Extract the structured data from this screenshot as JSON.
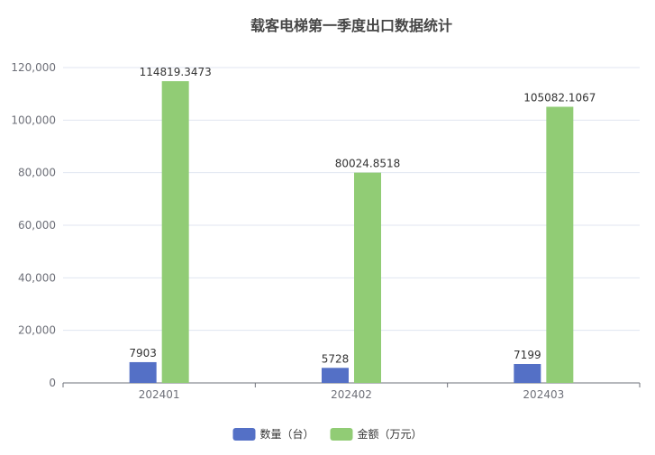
{
  "chart_data": {
    "type": "bar",
    "title": "载客电梯第一季度出口数据统计",
    "categories": [
      "202401",
      "202402",
      "202403"
    ],
    "series": [
      {
        "name": "数量（台）",
        "values": [
          7903,
          5728,
          7199
        ],
        "labels": [
          "7903",
          "5728",
          "7199"
        ],
        "color": "#5470c6"
      },
      {
        "name": "金额（万元）",
        "values": [
          114819.3473,
          80024.8518,
          105082.1067
        ],
        "labels": [
          "114819.3473",
          "80024.8518",
          "105082.1067"
        ],
        "color": "#91cc75"
      }
    ],
    "ylim": [
      0,
      120000
    ],
    "yticks": [
      0,
      20000,
      40000,
      60000,
      80000,
      100000,
      120000
    ],
    "ytick_labels": [
      "0",
      "20,000",
      "40,000",
      "60,000",
      "80,000",
      "100,000",
      "120,000"
    ],
    "grid": true,
    "legend_position": "bottom-center"
  }
}
